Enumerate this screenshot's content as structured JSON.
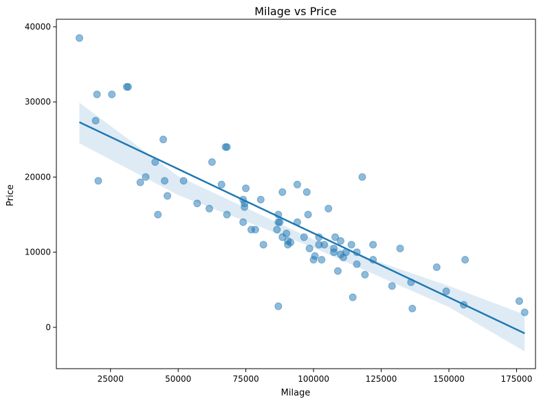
{
  "chart_data": {
    "type": "scatter",
    "title": "Milage vs Price",
    "xlabel": "Milage",
    "ylabel": "Price",
    "xlim": [
      5000,
      182000
    ],
    "ylim": [
      -5500,
      41000
    ],
    "xticks": [
      25000,
      50000,
      75000,
      100000,
      125000,
      150000,
      175000
    ],
    "yticks": [
      0,
      10000,
      20000,
      30000,
      40000
    ],
    "grid": false,
    "colors": {
      "points": "#1f77b4",
      "line": "#1f77b4",
      "band": "#1f77b4"
    },
    "points": [
      [
        13500,
        38500
      ],
      [
        20000,
        31000
      ],
      [
        25500,
        31000
      ],
      [
        31000,
        32000
      ],
      [
        31500,
        32000
      ],
      [
        19500,
        27500
      ],
      [
        20500,
        19500
      ],
      [
        44500,
        25000
      ],
      [
        41500,
        22000
      ],
      [
        38000,
        20000
      ],
      [
        36000,
        19300
      ],
      [
        45000,
        19500
      ],
      [
        46000,
        17500
      ],
      [
        42500,
        15000
      ],
      [
        52000,
        19500
      ],
      [
        57000,
        16500
      ],
      [
        61500,
        15800
      ],
      [
        62500,
        22000
      ],
      [
        66000,
        19000
      ],
      [
        67500,
        24000
      ],
      [
        68000,
        24000
      ],
      [
        68000,
        15000
      ],
      [
        74000,
        17000
      ],
      [
        74500,
        16500
      ],
      [
        74000,
        14000
      ],
      [
        74500,
        16000
      ],
      [
        75000,
        18500
      ],
      [
        77000,
        13000
      ],
      [
        78500,
        13000
      ],
      [
        80500,
        17000
      ],
      [
        81500,
        11000
      ],
      [
        86500,
        13000
      ],
      [
        87000,
        15000
      ],
      [
        87000,
        14000
      ],
      [
        87500,
        14000
      ],
      [
        88500,
        12000
      ],
      [
        88500,
        18000
      ],
      [
        90000,
        12500
      ],
      [
        90500,
        11000
      ],
      [
        90500,
        11500
      ],
      [
        91500,
        11300
      ],
      [
        94000,
        14000
      ],
      [
        94000,
        19000
      ],
      [
        96500,
        12000
      ],
      [
        97500,
        18000
      ],
      [
        98000,
        15000
      ],
      [
        98500,
        10500
      ],
      [
        100000,
        9000
      ],
      [
        100500,
        9500
      ],
      [
        102000,
        12000
      ],
      [
        102000,
        11000
      ],
      [
        103000,
        9000
      ],
      [
        104000,
        11000
      ],
      [
        105500,
        15800
      ],
      [
        107500,
        10500
      ],
      [
        107500,
        10000
      ],
      [
        108000,
        12000
      ],
      [
        109000,
        7500
      ],
      [
        110000,
        11500
      ],
      [
        110000,
        9700
      ],
      [
        111000,
        9300
      ],
      [
        112000,
        10000
      ],
      [
        114000,
        11000
      ],
      [
        114500,
        4000
      ],
      [
        116000,
        10000
      ],
      [
        116000,
        8400
      ],
      [
        118000,
        20000
      ],
      [
        119000,
        7000
      ],
      [
        122000,
        11000
      ],
      [
        122000,
        9000
      ],
      [
        129000,
        5500
      ],
      [
        132000,
        10500
      ],
      [
        136000,
        6000
      ],
      [
        136500,
        2500
      ],
      [
        145500,
        8000
      ],
      [
        149000,
        4800
      ],
      [
        155500,
        3000
      ],
      [
        156000,
        9000
      ],
      [
        176000,
        3500
      ],
      [
        178000,
        2000
      ],
      [
        87000,
        2800
      ]
    ],
    "regression": {
      "x_range": [
        13500,
        178000
      ],
      "y_at_start": 27300,
      "y_at_end": -800
    },
    "confidence_band": [
      [
        13500,
        24500,
        29900
      ],
      [
        50000,
        17600,
        20100
      ],
      [
        100000,
        10600,
        11700
      ],
      [
        150000,
        2700,
        5500
      ],
      [
        178000,
        -3200,
        1700
      ]
    ]
  }
}
